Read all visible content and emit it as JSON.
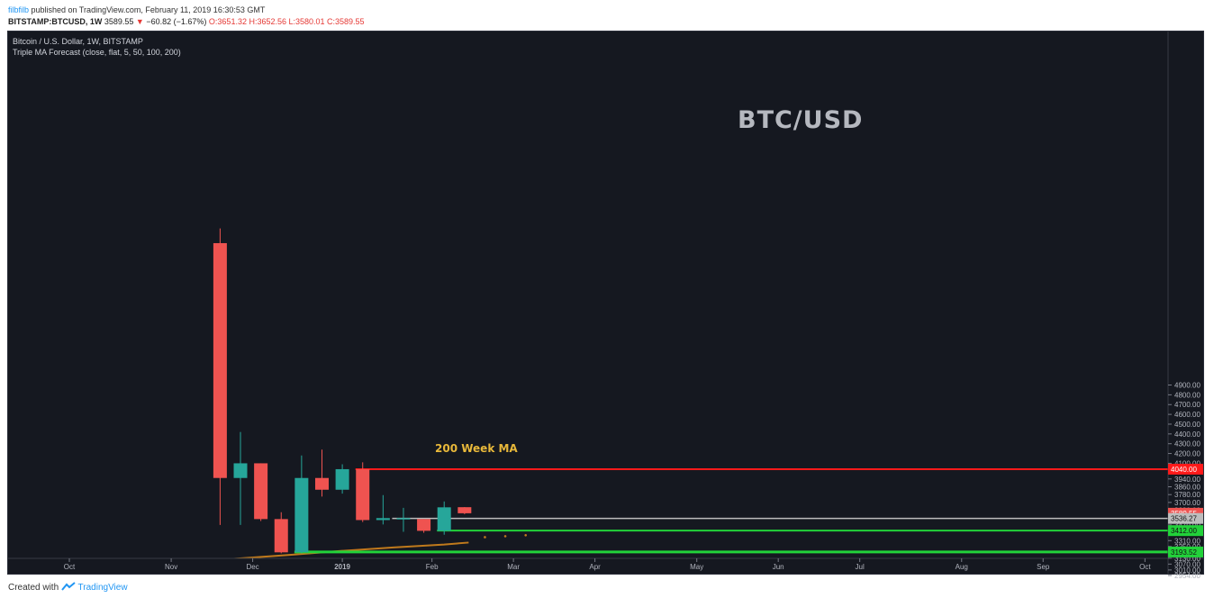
{
  "header": {
    "user": "filbfilb",
    "published": " published on TradingView.com, February 11, 2019 16:30:53 GMT",
    "symbol": "BITSTAMP:BTCUSD, 1W",
    "price": "3589.55",
    "arrow": "▼",
    "change": "−60.82 (−1.67%)",
    "ohlc": "O:3651.32 H:3652.56 L:3580.01 C:3589.55"
  },
  "legend": {
    "line1": "Bitcoin / U.S. Dollar, 1W, BITSTAMP",
    "line2": "Triple MA Forecast (close, flat, 5, 50, 100, 200)"
  },
  "annotations": {
    "title": "BTC/USD",
    "ma_label": "200 Week MA"
  },
  "footer": {
    "created": "Created with",
    "brand": "TradingView"
  },
  "colors": {
    "background": "#151820",
    "up": "#26a69a",
    "down": "#ef5350",
    "red_level": "#ff1a1a",
    "green_level": "#22d23a",
    "gray_level": "#bdbdbd",
    "ma": "#c07a1c"
  },
  "chart_data": {
    "type": "candlestick",
    "ylim": [
      2890,
      4980
    ],
    "y_ticks": [
      4900,
      4800,
      4700,
      4600,
      4500,
      4400,
      4300,
      4200,
      4100,
      3940,
      3860,
      3780,
      3700,
      3620,
      3470,
      3390,
      3310,
      3250,
      3130,
      3070,
      3010,
      2954
    ],
    "x_labels": [
      {
        "label": "Oct",
        "week": -6.4
      },
      {
        "label": "Nov",
        "week": -1.4
      },
      {
        "label": "Dec",
        "week": 2.6
      },
      {
        "label": "2019",
        "week": 7.0
      },
      {
        "label": "Feb",
        "week": 11.4
      },
      {
        "label": "Mar",
        "week": 15.4
      },
      {
        "label": "Apr",
        "week": 19.4
      },
      {
        "label": "May",
        "week": 24.4
      },
      {
        "label": "Jun",
        "week": 28.4
      },
      {
        "label": "Jul",
        "week": 32.4
      },
      {
        "label": "Aug",
        "week": 37.4
      },
      {
        "label": "Sep",
        "week": 41.4
      },
      {
        "label": "Oct",
        "week": 46.4
      }
    ],
    "candles": [
      {
        "week": 1,
        "open": 6350,
        "high": 6500,
        "low": 3470,
        "close": 3950
      },
      {
        "week": 2,
        "open": 3950,
        "high": 4420,
        "low": 3470,
        "close": 4100
      },
      {
        "week": 3,
        "open": 4100,
        "high": 4100,
        "low": 3510,
        "close": 3530
      },
      {
        "week": 4,
        "open": 3530,
        "high": 3600,
        "low": 3180,
        "close": 3190
      },
      {
        "week": 5,
        "open": 3190,
        "high": 4180,
        "low": 3180,
        "close": 3950
      },
      {
        "week": 6,
        "open": 3950,
        "high": 4240,
        "low": 3760,
        "close": 3830
      },
      {
        "week": 7,
        "open": 3830,
        "high": 4090,
        "low": 3790,
        "close": 4040
      },
      {
        "week": 8,
        "open": 4040,
        "high": 4110,
        "low": 3500,
        "close": 3520
      },
      {
        "week": 9,
        "open": 3520,
        "high": 3775,
        "low": 3475,
        "close": 3540
      },
      {
        "week": 10,
        "open": 3540,
        "high": 3645,
        "low": 3400,
        "close": 3540
      },
      {
        "week": 11,
        "open": 3530,
        "high": 3530,
        "low": 3390,
        "close": 3410
      },
      {
        "week": 12,
        "open": 3410,
        "high": 3710,
        "low": 3370,
        "close": 3650
      },
      {
        "week": 13,
        "open": 3651.32,
        "high": 3652.56,
        "low": 3580.01,
        "close": 3589.55
      }
    ],
    "levels": [
      {
        "value": 4040.0,
        "label": "4040.00",
        "color": "red",
        "from_week": 8
      },
      {
        "value": 3589.55,
        "label": "3589.55",
        "color": "price",
        "from_week": 13
      },
      {
        "value": 3536.27,
        "label": "3536.27",
        "color": "gray",
        "from_week": 9.8
      },
      {
        "value": 3412.0,
        "label": "3412.00",
        "color": "green",
        "from_week": 12
      },
      {
        "value": 3193.52,
        "label": "3193.52",
        "color": "green",
        "from_week": 5
      }
    ],
    "ma200": {
      "line": [
        [
          -7.0,
          2940
        ],
        [
          -3.0,
          3030
        ],
        [
          0.0,
          3100
        ],
        [
          2.0,
          3128
        ],
        [
          4.5,
          3165
        ],
        [
          7.0,
          3205
        ],
        [
          9.5,
          3240
        ],
        [
          12.0,
          3270
        ],
        [
          13.2,
          3290
        ]
      ],
      "forecast": [
        [
          14.0,
          3345
        ],
        [
          15.0,
          3355
        ],
        [
          16.0,
          3365
        ]
      ]
    }
  }
}
